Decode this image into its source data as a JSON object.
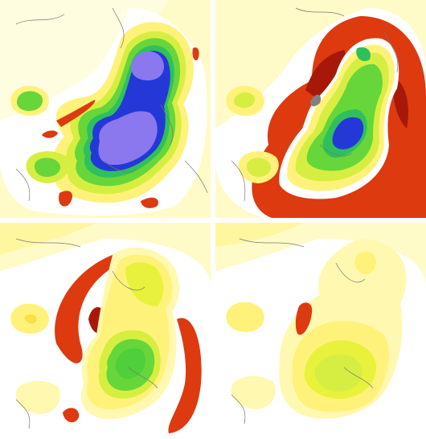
{
  "figure": {
    "panels": [
      {
        "id": "top-left",
        "pattern": "strong-uplift",
        "colors": [
          "#fffcc8",
          "#fff8a0",
          "#fff04a",
          "#d2f03c",
          "#8ee03a",
          "#4ad23a",
          "#2ab860",
          "#1a7cff",
          "#2c3ce0",
          "#5a4ad6",
          "#8c7af0",
          "#a08cf8"
        ]
      },
      {
        "id": "top-right",
        "pattern": "uplift-with-red-ring"
      },
      {
        "id": "bottom-left",
        "pattern": "moderate-uplift-with-red-lobes"
      },
      {
        "id": "bottom-right",
        "pattern": "weak-uplift"
      }
    ],
    "palette": {
      "pale_yellow": "#fffbc8",
      "yellow": "#fff27a",
      "yellow_green": "#d6ee42",
      "green": "#66d63a",
      "teal_green": "#2fbf5c",
      "blue": "#2438d8",
      "purple": "#8b78ee",
      "red_orange": "#dd3a10",
      "dark_red": "#a81808",
      "grey": "#808080",
      "white": "#ffffff"
    }
  }
}
